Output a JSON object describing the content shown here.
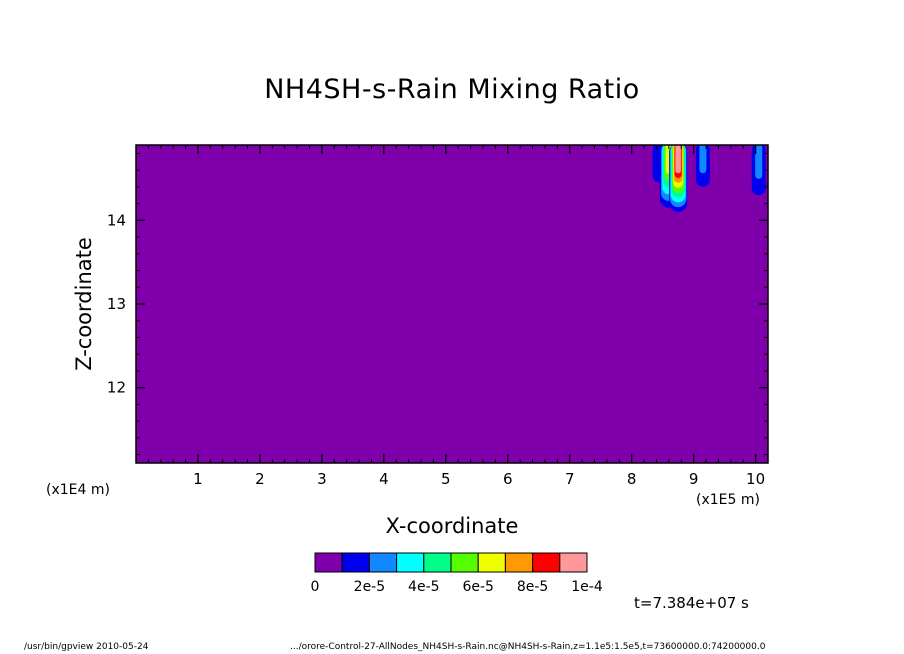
{
  "chart_data": {
    "type": "heatmap",
    "title": "NH4SH-s-Rain Mixing Ratio",
    "xlabel": "X-coordinate",
    "ylabel": "Z-coordinate",
    "x_multiplier_label": "(x1E5 m)",
    "y_multiplier_label": "(x1E4 m)",
    "xlim": [
      0,
      10.2
    ],
    "ylim": [
      11.1,
      14.9
    ],
    "x_ticks": [
      1,
      2,
      3,
      4,
      5,
      6,
      7,
      8,
      9,
      10
    ],
    "y_ticks": [
      12,
      13,
      14
    ],
    "background_value": 0,
    "levels": [
      0,
      1e-05,
      2e-05,
      3e-05,
      4e-05,
      5e-05,
      6e-05,
      7e-05,
      8e-05,
      9e-05,
      0.0001
    ],
    "colorbar_colors": [
      "#7f00aa",
      "#0000ee",
      "#1188ff",
      "#00ffff",
      "#00ff88",
      "#55ff00",
      "#eeff00",
      "#ff9900",
      "#ff0000",
      "#ff9999"
    ],
    "colorbar_labels": [
      "0",
      "2e-5",
      "4e-5",
      "6e-5",
      "8e-5",
      "1e-4"
    ],
    "features": [
      {
        "x": 8.45,
        "z_bottom": 14.45,
        "value": 1e-05
      },
      {
        "x": 8.6,
        "z_bottom": 14.15,
        "value": 6e-05
      },
      {
        "x": 8.75,
        "z_bottom": 14.1,
        "value": 0.0001
      },
      {
        "x": 9.15,
        "z_bottom": 14.4,
        "value": 2e-05
      },
      {
        "x": 10.05,
        "z_bottom": 14.3,
        "value": 2e-05
      }
    ],
    "time_label": "t=7.384e+07 s"
  },
  "footer": {
    "left": "/usr/bin/gpview   2010-05-24",
    "right": ".../orore-Control-27-AllNodes_NH4SH-s-Rain.nc@NH4SH-s-Rain,z=1.1e5:1.5e5,t=73600000.0:74200000.0"
  }
}
